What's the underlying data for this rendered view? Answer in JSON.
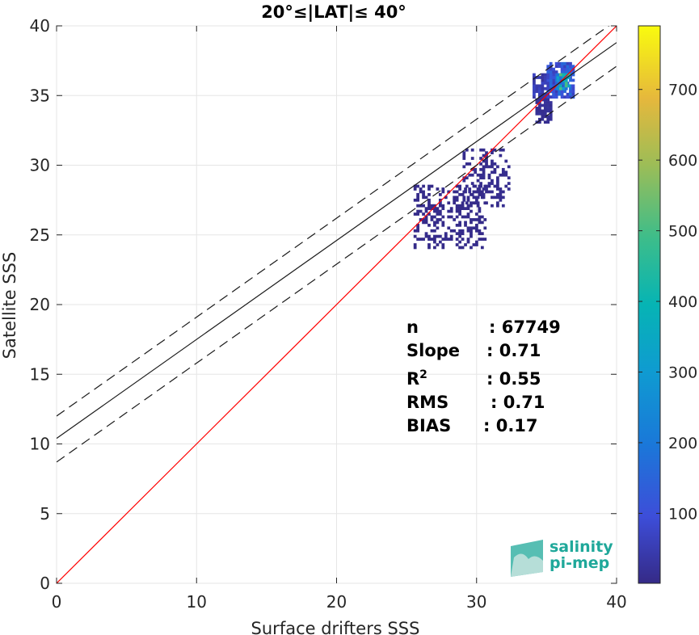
{
  "chart_data": {
    "type": "heatmap",
    "title": "20°≤|LAT|≤ 40°",
    "xlabel": "Surface drifters SSS",
    "ylabel": "Satellite SSS",
    "xlim": [
      0,
      40
    ],
    "ylim": [
      0,
      40
    ],
    "xticks": [
      "0",
      "10",
      "20",
      "30",
      "40"
    ],
    "yticks": [
      "0",
      "5",
      "10",
      "15",
      "20",
      "25",
      "30",
      "35",
      "40"
    ],
    "grid": true,
    "colorbar": {
      "colormap": "parula",
      "range": [
        1,
        790
      ],
      "ticks": [
        "100",
        "200",
        "300",
        "400",
        "500",
        "600",
        "700"
      ],
      "tick_values": [
        100,
        200,
        300,
        400,
        500,
        600,
        700
      ]
    },
    "reference_lines": [
      {
        "kind": "one-to-one",
        "color": "#ff0000",
        "style": "solid",
        "slope": 1,
        "intercept": 0
      },
      {
        "kind": "regression",
        "color": "#1a1a1a",
        "style": "solid",
        "slope": 0.71,
        "intercept": 10.4
      },
      {
        "kind": "regression-upper",
        "color": "#1a1a1a",
        "style": "dashed",
        "slope": 0.71,
        "intercept": 12.0
      },
      {
        "kind": "regression-lower",
        "color": "#1a1a1a",
        "style": "dashed",
        "slope": 0.71,
        "intercept": 8.7
      }
    ],
    "density_clusters": [
      {
        "x_range": [
          34.0,
          35.8
        ],
        "y_range": [
          34.8,
          36.6
        ],
        "level": 60
      },
      {
        "x_range": [
          35.0,
          37.0
        ],
        "y_range": [
          34.8,
          37.3
        ],
        "level": 140
      },
      {
        "x_range": [
          35.7,
          36.6
        ],
        "y_range": [
          35.4,
          36.6
        ],
        "level": 420
      },
      {
        "x_range": [
          34.2,
          35.3
        ],
        "y_range": [
          33.0,
          34.8
        ],
        "level": 20
      },
      {
        "x_range": [
          29.0,
          32.2
        ],
        "y_range": [
          27.0,
          31.0
        ],
        "level": 10
      },
      {
        "x_range": [
          25.5,
          30.5
        ],
        "y_range": [
          24.0,
          28.5
        ],
        "level": 5
      }
    ],
    "stats": [
      {
        "label": "n",
        "sep": ":",
        "value": "67749"
      },
      {
        "label": "Slope",
        "sep": ":",
        "value": "0.71"
      },
      {
        "label": "R",
        "sup": "2",
        "sep": ":",
        "value": "0.55"
      },
      {
        "label": "RMS",
        "sep": ":",
        "value": "0.71"
      },
      {
        "label": "BIAS",
        "sep": ":",
        "value": "0.17"
      }
    ],
    "colors": {
      "one_to_one": "#ff0000",
      "fit": "#1a1a1a",
      "logo": "#1fa89a"
    }
  },
  "logo": {
    "line1": "salinity",
    "line2": "pi-mep"
  }
}
